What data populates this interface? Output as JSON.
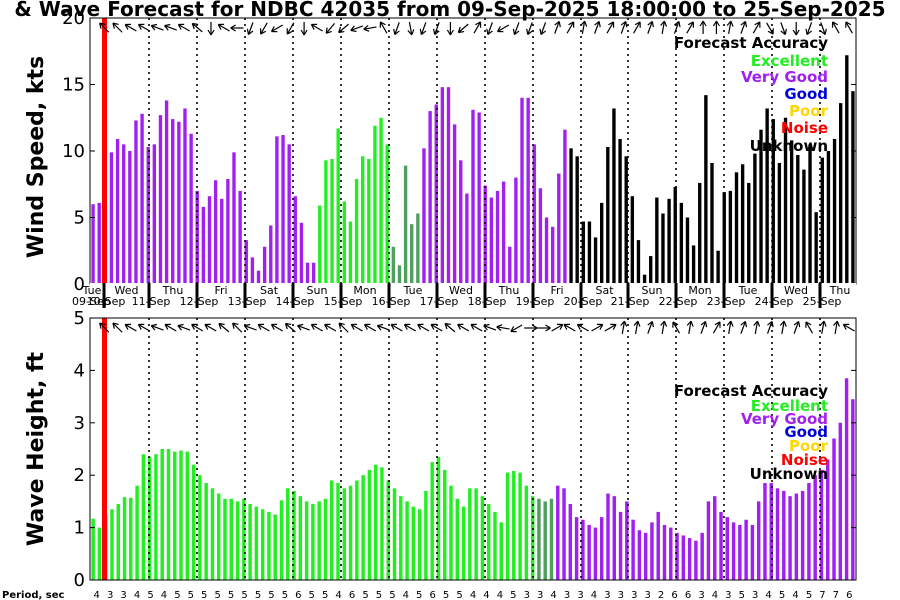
{
  "title": "& Wave Forecast for NDBC 42035 from 09-Sep-2025 18:00:00 to 25-Sep-2025",
  "legend": {
    "title": "Forecast Accuracy",
    "items": [
      {
        "label": "Excellent",
        "color": "#22ee22"
      },
      {
        "label": "Very Good",
        "color": "#a020f0"
      },
      {
        "label": "Good",
        "color": "#0000dd"
      },
      {
        "label": "Poor",
        "color": "#ffd700"
      },
      {
        "label": "Noise",
        "color": "#ff0000"
      },
      {
        "label": "Unknown",
        "color": "#000000"
      }
    ]
  },
  "colors": {
    "excellent": "#22ee22",
    "vgood": "#a020f0",
    "good": "#0000dd",
    "poor": "#ffd700",
    "noise": "#ff0000",
    "unknown": "#000000",
    "mid": "#4f9f5f",
    "now_line": "#ff0000"
  },
  "period_label": "Period, sec",
  "chart_data": [
    {
      "type": "bar",
      "title": "Wind Speed",
      "ylabel": "Wind Speed, kts",
      "ylim": [
        0,
        20
      ],
      "yticks": [
        "0",
        "5",
        "10",
        "15",
        "20"
      ],
      "day_labels": [
        {
          "day": "Tue",
          "date": "09-Sep"
        },
        {
          "day": "Wed",
          "date": "10-Sep"
        },
        {
          "day": "Thu",
          "date": "11-Sep"
        },
        {
          "day": "Fri",
          "date": "12-Sep"
        },
        {
          "day": "Sat",
          "date": "13-Sep"
        },
        {
          "day": "Sun",
          "date": "14-Sep"
        },
        {
          "day": "Mon",
          "date": "15-Sep"
        },
        {
          "day": "Tue",
          "date": "16-Sep"
        },
        {
          "day": "Wed",
          "date": "17-Sep"
        },
        {
          "day": "Thu",
          "date": "18-Sep"
        },
        {
          "day": "Fri",
          "date": "19-Sep"
        },
        {
          "day": "Sat",
          "date": "20-Sep"
        },
        {
          "day": "Sun",
          "date": "21-Sep"
        },
        {
          "day": "Mon",
          "date": "22-Sep"
        },
        {
          "day": "Tue",
          "date": "23-Sep"
        },
        {
          "day": "Wed",
          "date": "24-Sep"
        },
        {
          "day": "Thu",
          "date": "25-Sep"
        }
      ],
      "series": [
        {
          "name": "Very Good",
          "color": "#a020f0",
          "values": [
            6.0,
            6.1,
            9.7,
            9.9,
            10.9,
            10.5,
            10.0,
            12.3,
            12.8,
            10.3,
            10.5,
            12.7,
            13.8,
            12.4,
            12.2,
            13.2,
            11.3,
            7.0,
            5.8,
            6.6,
            7.8,
            6.4,
            7.9,
            9.9,
            7.0,
            3.3,
            2.0,
            1.0,
            2.8,
            4.4,
            11.1,
            11.2,
            10.5,
            6.6,
            4.6,
            1.6,
            1.6
          ]
        },
        {
          "name": "Excellent",
          "color": "#22ee22",
          "values": [
            5.9,
            9.3,
            9.4,
            11.7,
            6.2,
            4.7,
            7.9,
            9.6,
            9.4,
            11.9,
            12.5,
            10.5
          ]
        },
        {
          "name": "Transition",
          "color": "#4f9f5f",
          "values": [
            2.8,
            1.4,
            8.9,
            4.5,
            5.3
          ]
        },
        {
          "name": "Very Good 2",
          "color": "#a020f0",
          "values": [
            10.2,
            13.0,
            13.5,
            14.8,
            14.8,
            12.0,
            9.3,
            6.8,
            13.1,
            12.9,
            7.4,
            6.5,
            7.0,
            7.7,
            2.8,
            8.0,
            14.0,
            14.0,
            10.5,
            7.2,
            5.0,
            4.3,
            8.3,
            11.6
          ]
        },
        {
          "name": "Unknown",
          "color": "#000000",
          "values": [
            10.2,
            9.6,
            4.7,
            4.7,
            3.5,
            6.1,
            10.3,
            13.2,
            10.9,
            9.6,
            6.6,
            3.3,
            0.7,
            2.1,
            6.5,
            5.3,
            6.4,
            7.3,
            6.1,
            5.0,
            2.9,
            7.6,
            14.2,
            9.1,
            2.5,
            6.9,
            7.0,
            8.4,
            9.0,
            7.6,
            9.8,
            11.6,
            13.2,
            12.4,
            9.1,
            12.5,
            10.8,
            9.7,
            8.6,
            10.5,
            5.4,
            9.5,
            10.0,
            10.9,
            13.6,
            17.2,
            14.5
          ]
        }
      ],
      "directions": [
        315,
        315,
        300,
        300,
        290,
        290,
        300,
        310,
        180,
        300,
        270,
        200,
        210,
        240,
        210,
        180,
        300,
        220,
        230,
        250,
        260,
        330,
        200,
        170,
        200,
        200,
        180,
        230,
        30,
        200,
        240,
        200,
        200,
        200,
        20,
        30,
        10,
        20,
        30,
        20,
        30,
        20,
        10,
        20,
        30,
        0,
        0,
        10,
        20,
        30,
        150,
        160,
        180,
        200,
        160,
        330,
        330
      ]
    },
    {
      "type": "bar",
      "title": "Wave Height",
      "ylabel": "Wave Height, ft",
      "ylim": [
        0,
        5
      ],
      "yticks": [
        "0",
        "1",
        "2",
        "3",
        "4",
        "5"
      ],
      "series": [
        {
          "name": "Excellent",
          "color": "#22ee22",
          "values": [
            1.17,
            1.0,
            1.25,
            1.35,
            1.45,
            1.58,
            1.57,
            1.8,
            2.4,
            2.35,
            2.4,
            2.5,
            2.5,
            2.45,
            2.47,
            2.45,
            2.2,
            2.0,
            1.85,
            1.75,
            1.65,
            1.55,
            1.55,
            1.5,
            1.55,
            1.45,
            1.4,
            1.35,
            1.3,
            1.25,
            1.52,
            1.75,
            1.7,
            1.6,
            1.5,
            1.45,
            1.5,
            1.55,
            1.9,
            1.85,
            1.75,
            1.8,
            1.9,
            2.0,
            2.1,
            2.2,
            2.15,
            1.9,
            1.75,
            1.6,
            1.5,
            1.4,
            1.35,
            1.7,
            2.25,
            2.35,
            2.1,
            1.8,
            1.55,
            1.4,
            1.75,
            1.75,
            1.6,
            1.45,
            1.3,
            1.1,
            2.05,
            2.08,
            2.05,
            1.8,
            1.6
          ]
        },
        {
          "name": "Transition",
          "color": "#4f9f5f",
          "values": [
            1.55,
            1.5,
            1.55
          ]
        },
        {
          "name": "Very Good",
          "color": "#a020f0",
          "values": [
            1.8,
            1.75,
            1.45,
            1.2,
            1.15,
            1.05,
            1.0,
            1.2,
            1.65,
            1.6,
            1.3,
            1.5,
            1.15,
            0.95,
            0.9,
            1.1,
            1.3,
            1.05,
            1.0,
            0.9,
            0.85,
            0.8,
            0.75,
            0.9,
            1.5,
            1.6,
            1.3,
            1.2,
            1.1,
            1.05,
            1.15,
            1.05,
            1.5,
            1.85,
            1.85,
            1.75,
            1.7,
            1.6,
            1.65,
            1.7,
            1.85,
            2.0,
            2.1,
            2.3,
            2.7,
            3.0,
            3.85,
            3.45
          ]
        }
      ],
      "directions": [
        315,
        315,
        300,
        300,
        290,
        300,
        290,
        300,
        300,
        310,
        315,
        290,
        300,
        300,
        310,
        290,
        300,
        300,
        315,
        300,
        300,
        290,
        300,
        300,
        300,
        300,
        310,
        300,
        300,
        290,
        280,
        240,
        90,
        90,
        60,
        300,
        300,
        60,
        60,
        10,
        10,
        20,
        10,
        330,
        10,
        20,
        30,
        10,
        20,
        10,
        20,
        10,
        20,
        330,
        10,
        10,
        300
      ],
      "periods": [
        "4",
        "3",
        "3",
        "4",
        "5",
        "4",
        "5",
        "5",
        "5",
        "5",
        "5",
        "5",
        "5",
        "5",
        "5",
        "6",
        "5",
        "5",
        "4",
        "6",
        "5",
        "5",
        "5",
        "4",
        "5",
        "6",
        "5",
        "5",
        "4",
        "4",
        "4",
        "5",
        "3",
        "3",
        "4",
        "3",
        "3",
        "4",
        "3",
        "3",
        "3",
        "3",
        "2",
        "6",
        "6",
        "3",
        "4",
        "3",
        "5",
        "3",
        "4",
        "5",
        "4",
        "5",
        "7",
        "7",
        "6"
      ]
    }
  ]
}
